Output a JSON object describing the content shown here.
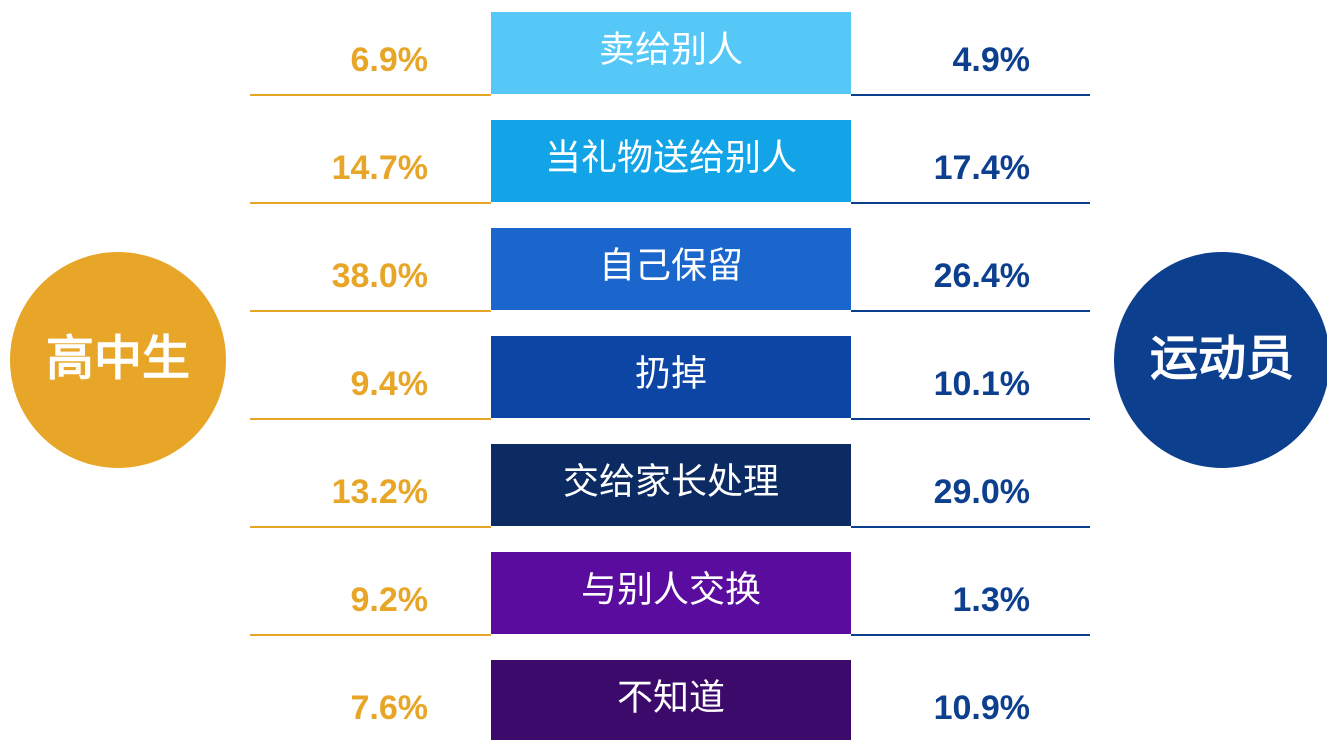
{
  "left_group": "高中生",
  "right_group": "运动员",
  "left_color": "#e8a628",
  "right_color": "#0d3f8f",
  "rows": [
    {
      "label": "卖给别人",
      "left": "6.9%",
      "right": "4.9%",
      "color": "#56c8f8"
    },
    {
      "label": "当礼物送给别人",
      "left": "14.7%",
      "right": "17.4%",
      "color": "#12a4e6"
    },
    {
      "label": "自己保留",
      "left": "38.0%",
      "right": "26.4%",
      "color": "#1a66cc"
    },
    {
      "label": "扔掉",
      "left": "9.4%",
      "right": "10.1%",
      "color": "#0d45a5"
    },
    {
      "label": "交给家长处理",
      "left": "13.2%",
      "right": "29.0%",
      "color": "#0c2b63"
    },
    {
      "label": "与别人交换",
      "left": "9.2%",
      "right": "1.3%",
      "color": "#5a0c9e"
    },
    {
      "label": "不知道",
      "left": "7.6%",
      "right": "10.9%",
      "color": "#3c0a6a"
    }
  ]
}
